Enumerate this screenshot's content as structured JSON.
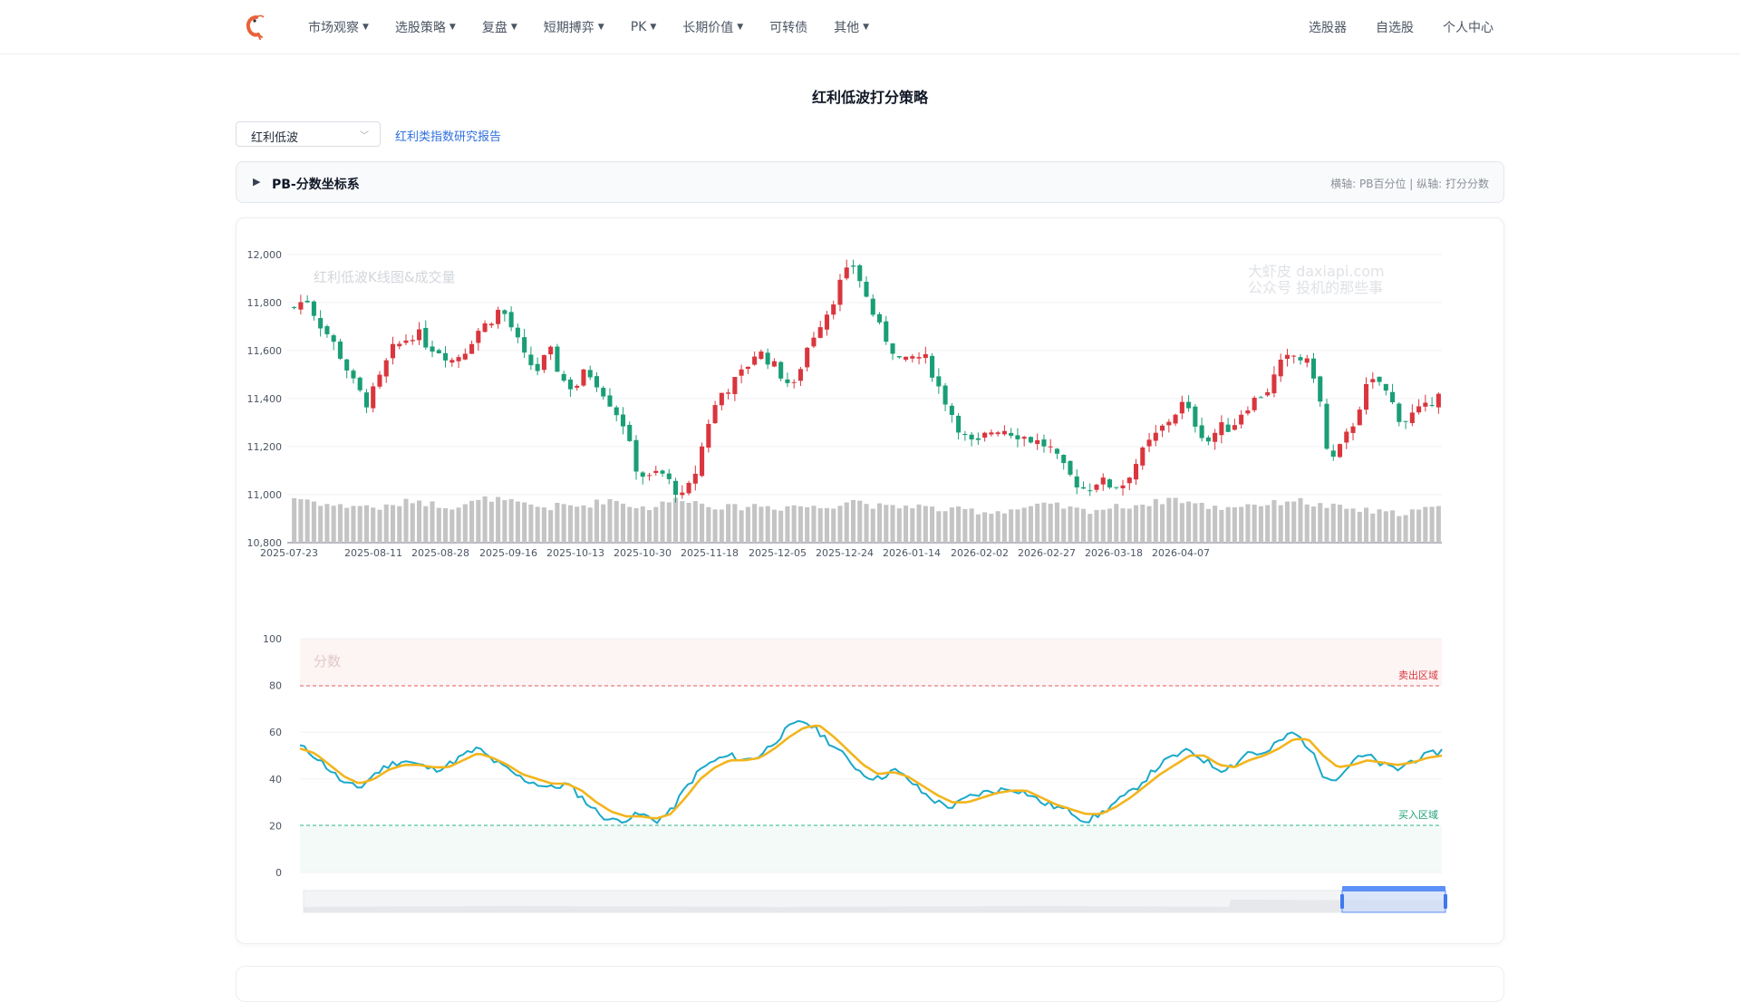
{
  "nav": {
    "logo_icon": "shrimp-logo-icon",
    "menu": [
      {
        "label": "市场观察",
        "dropdown": true
      },
      {
        "label": "选股策略",
        "dropdown": true
      },
      {
        "label": "复盘",
        "dropdown": true
      },
      {
        "label": "短期搏弈",
        "dropdown": true
      },
      {
        "label": "PK",
        "dropdown": true
      },
      {
        "label": "长期价值",
        "dropdown": true
      },
      {
        "label": "可转债",
        "dropdown": false
      },
      {
        "label": "其他",
        "dropdown": true
      }
    ],
    "right": [
      "选股器",
      "自选股",
      "个人中心"
    ]
  },
  "page": {
    "title": "红利低波打分策略",
    "select_value": "红利低波",
    "report_link": "红利类指数研究报告"
  },
  "collapse": {
    "title": "PB-分数坐标系",
    "hint": "横轴: PB百分位 | 纵轴: 打分分数"
  },
  "chart": {
    "kline_title": "红利低波K线图&成交量",
    "watermark_line1": "大虾皮 daxiapi.com",
    "watermark_line2": "公众号 投机的那些事",
    "score_title": "分数",
    "sell_zone_label": "卖出区域",
    "buy_zone_label": "买入区域",
    "colors": {
      "up": "#d9363e",
      "down": "#1a9e76",
      "volume": "#c4c4c4",
      "score": "#1ba9c9",
      "score_ma": "#f2b51d",
      "sell": "#e05c5c",
      "buy": "#2bb58a"
    }
  },
  "chart_data": [
    {
      "type": "candlestick",
      "title": "红利低波K线图&成交量",
      "ylim": [
        10800,
        12000
      ],
      "yticks": [
        12000,
        11800,
        11600,
        11400,
        11200,
        11000,
        10800
      ],
      "ytick_labels": [
        "12,000",
        "11,800",
        "11,600",
        "11,400",
        "11,200",
        "11,000",
        "10,800"
      ],
      "xtick_labels": [
        "2025-07-23",
        "2025-08-11",
        "2025-08-28",
        "2025-09-16",
        "2025-10-13",
        "2025-10-30",
        "2025-11-18",
        "2025-12-05",
        "2025-12-24",
        "2026-01-14",
        "2026-02-02",
        "2026-02-27",
        "2026-03-18",
        "2026-04-07"
      ],
      "close_path": [
        11780,
        11820,
        11720,
        11650,
        11560,
        11450,
        11380,
        11480,
        11600,
        11640,
        11680,
        11620,
        11600,
        11560,
        11600,
        11680,
        11720,
        11780,
        11680,
        11560,
        11520,
        11600,
        11480,
        11440,
        11520,
        11460,
        11380,
        11300,
        11120,
        11060,
        11100,
        11040,
        10980,
        11100,
        11300,
        11420,
        11460,
        11520,
        11600,
        11560,
        11500,
        11440,
        11600,
        11700,
        11780,
        11900,
        11960,
        11820,
        11700,
        11620,
        11540,
        11580,
        11560,
        11440,
        11340,
        11240,
        11200,
        11260,
        11280,
        11260,
        11240,
        11220,
        11200,
        11120,
        11060,
        11020,
        11060,
        11040,
        11040,
        11120,
        11200,
        11260,
        11320,
        11380,
        11300,
        11220,
        11280,
        11280,
        11360,
        11400,
        11440,
        11540,
        11580,
        11560,
        11480,
        11120,
        11200,
        11300,
        11440,
        11480,
        11400,
        11300,
        11340,
        11360,
        11440
      ],
      "volume_path": [
        62,
        60,
        55,
        52,
        50,
        52,
        50,
        48,
        50,
        55,
        60,
        54,
        52,
        50,
        54,
        56,
        62,
        58,
        55,
        52,
        50,
        48,
        52,
        50,
        52,
        56,
        60,
        55,
        50,
        48,
        52,
        58,
        62,
        56,
        52,
        50,
        48,
        50,
        52,
        50,
        48,
        52,
        50,
        48,
        50,
        56,
        60,
        54,
        50,
        48,
        50,
        52,
        48,
        46,
        44,
        46,
        44,
        42,
        44,
        46,
        48,
        50,
        52,
        50,
        46,
        44,
        46,
        48,
        50,
        52,
        54,
        56,
        62,
        58,
        54,
        50,
        48,
        50,
        52,
        54,
        52,
        56,
        60,
        56,
        52,
        50,
        48,
        46,
        44,
        42,
        40,
        42,
        44,
        46,
        48
      ]
    },
    {
      "type": "line",
      "title": "分数",
      "ylim": [
        0,
        100
      ],
      "yticks": [
        100,
        80,
        60,
        40,
        20,
        0
      ],
      "reference_lines": [
        {
          "value": 80,
          "label": "卖出区域"
        },
        {
          "value": 20,
          "label": "买入区域"
        }
      ],
      "series": [
        {
          "values": [
            54,
            50,
            44,
            38,
            36,
            42,
            46,
            48,
            46,
            44,
            46,
            50,
            53,
            48,
            44,
            40,
            38,
            36,
            38,
            32,
            26,
            22,
            23,
            25,
            22,
            26,
            36,
            44,
            48,
            50,
            48,
            50,
            56,
            62,
            65,
            60,
            54,
            48,
            42,
            40,
            44,
            40,
            34,
            30,
            28,
            32,
            34,
            35,
            36,
            34,
            30,
            28,
            26,
            22,
            25,
            30,
            34,
            40,
            46,
            50,
            52,
            48,
            44,
            46,
            52,
            50,
            56,
            60,
            54,
            42,
            40,
            48,
            50,
            46,
            44,
            48,
            50,
            52
          ]
        },
        {
          "values": [
            53,
            51,
            46,
            41,
            38,
            40,
            44,
            46,
            46,
            45,
            45,
            48,
            51,
            49,
            46,
            42,
            40,
            38,
            38,
            35,
            30,
            26,
            24,
            24,
            23,
            25,
            32,
            40,
            45,
            48,
            48,
            49,
            53,
            58,
            62,
            63,
            58,
            52,
            46,
            42,
            43,
            41,
            37,
            33,
            30,
            30,
            32,
            34,
            35,
            35,
            32,
            29,
            27,
            25,
            25,
            28,
            32,
            37,
            42,
            46,
            50,
            50,
            46,
            45,
            48,
            50,
            53,
            57,
            57,
            50,
            45,
            46,
            48,
            47,
            46,
            47,
            49,
            50
          ]
        }
      ]
    }
  ]
}
